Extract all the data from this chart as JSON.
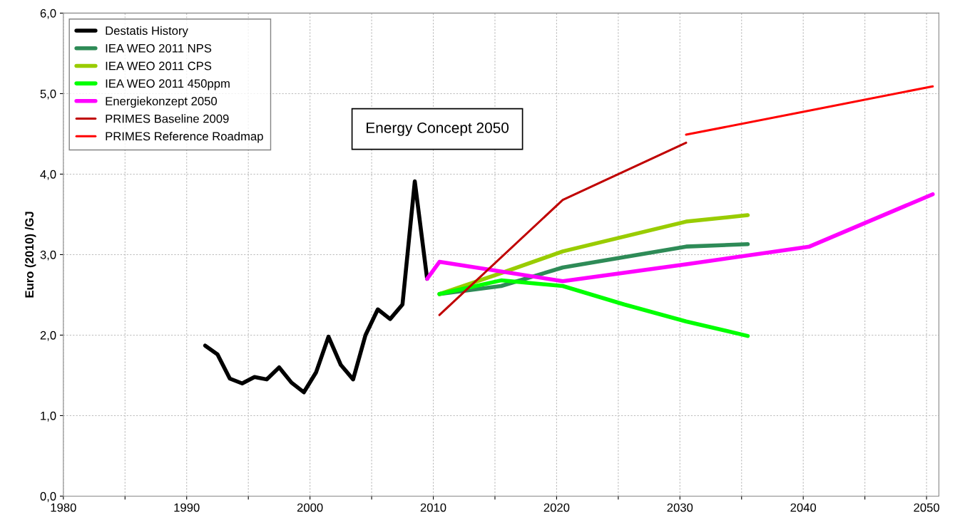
{
  "chart_data": {
    "type": "line",
    "ylabel": "Euro (2010) /GJ",
    "xlim": [
      1980,
      2051
    ],
    "ylim": [
      0,
      6
    ],
    "xticks": [
      1980,
      {
        "value": 1985,
        "label": null
      },
      1990,
      {
        "value": 1995,
        "label": null
      },
      2000,
      {
        "value": 2005,
        "label": null
      },
      2010,
      {
        "value": 2015,
        "label": null
      },
      2020,
      {
        "value": 2025,
        "label": null
      },
      2030,
      {
        "value": 2035,
        "label": null
      },
      2040,
      {
        "value": 2045,
        "label": null
      },
      2050
    ],
    "yticks": [
      {
        "value": 0,
        "label": "0,0"
      },
      {
        "value": 1,
        "label": "1,0"
      },
      {
        "value": 2,
        "label": "2,0"
      },
      {
        "value": 3,
        "label": "3,0"
      },
      {
        "value": 4,
        "label": "4,0"
      },
      {
        "value": 5,
        "label": "5,0"
      },
      {
        "value": 6,
        "label": "6,0"
      }
    ],
    "grid": true,
    "legend": "top left",
    "marker": "none",
    "line_style": "solid",
    "annotations": [
      "Energy Concept 2050"
    ],
    "series": [
      {
        "name": "Destatis History",
        "color": "#000000",
        "x": [
          1991.5,
          1992.5,
          1993.5,
          1994.5,
          1995.5,
          1996.5,
          1997.5,
          1998.5,
          1999.5,
          2000.5,
          2001.5,
          2002.5,
          2003.5,
          2004.5,
          2005.5,
          2006.5,
          2007.5,
          2008.5,
          2009.5
        ],
        "values": [
          1.87,
          1.76,
          1.46,
          1.4,
          1.48,
          1.45,
          1.6,
          1.41,
          1.29,
          1.54,
          1.98,
          1.63,
          1.45,
          2.0,
          2.32,
          2.2,
          2.38,
          3.91,
          2.7
        ]
      },
      {
        "name": "IEA WEO 2011 NPS",
        "color": "#2e8b57",
        "x": [
          2010.5,
          2015.5,
          2020.5,
          2030.5,
          2035.5
        ],
        "values": [
          2.51,
          2.61,
          2.84,
          3.1,
          3.13
        ]
      },
      {
        "name": "IEA WEO 2011 CPS",
        "color": "#99cc00",
        "x": [
          2010.5,
          2015.5,
          2020.5,
          2030.5,
          2035.5
        ],
        "values": [
          2.51,
          2.77,
          3.04,
          3.41,
          3.49
        ]
      },
      {
        "name": "IEA WEO 2011 450ppm",
        "color": "#00ff00",
        "x": [
          2010.5,
          2015.5,
          2020.5,
          2025.5,
          2030.5,
          2035.5
        ],
        "values": [
          2.51,
          2.68,
          2.61,
          2.38,
          2.17,
          1.99
        ]
      },
      {
        "name": "Energiekonzept 2050",
        "color": "#ff00ff",
        "x": [
          2009.5,
          2010.5,
          2020.5,
          2030.5,
          2040.5,
          2050.5
        ],
        "values": [
          2.7,
          2.91,
          2.67,
          2.88,
          3.1,
          3.75
        ]
      },
      {
        "name": "PRIMES Baseline 2009",
        "color": "#c00000",
        "x": [
          2010.5,
          2020.5,
          2030.5
        ],
        "values": [
          2.25,
          3.68,
          4.39
        ]
      },
      {
        "name": "PRIMES Reference Roadmap",
        "color": "#ff0000",
        "x": [
          2030.5,
          2040.5,
          2050.5
        ],
        "values": [
          4.49,
          4.79,
          5.09
        ]
      }
    ]
  }
}
